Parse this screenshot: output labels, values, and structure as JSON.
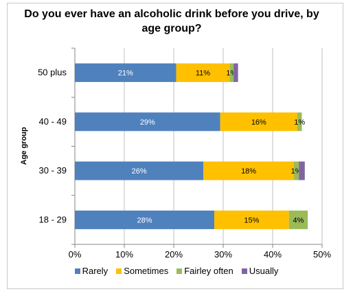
{
  "chart_data": {
    "type": "bar",
    "orientation": "horizontal",
    "stacked": true,
    "title": "Do you ever have an alcoholic drink before you drive, by age group?",
    "ylabel": "Age group",
    "xlabel": "",
    "categories": [
      "50 plus",
      "40 - 49",
      "30 - 39",
      "18 - 29"
    ],
    "xlim": [
      0,
      50
    ],
    "xticks": [
      "0%",
      "10%",
      "20%",
      "30%",
      "40%",
      "50%"
    ],
    "grid": true,
    "legend_position": "bottom",
    "series": [
      {
        "name": "Rarely",
        "color": "#4f81bd",
        "values": [
          20.5,
          29.4,
          26.0,
          28.2
        ],
        "labels": [
          "21%",
          "29%",
          "26%",
          "28%"
        ]
      },
      {
        "name": "Sometimes",
        "color": "#ffc000",
        "values": [
          10.8,
          15.6,
          18.3,
          15.1
        ],
        "labels": [
          "11%",
          "16%",
          "18%",
          "15%"
        ]
      },
      {
        "name": "Fairley often",
        "color": "#9bbb59",
        "values": [
          0.8,
          0.9,
          1.0,
          3.8
        ],
        "labels": [
          "1%",
          "1%",
          "1%",
          "4%"
        ]
      },
      {
        "name": "Usually",
        "color": "#8064a2",
        "values": [
          0.9,
          0.0,
          1.2,
          0.0
        ],
        "labels": [
          "",
          "",
          "",
          ""
        ]
      }
    ]
  }
}
